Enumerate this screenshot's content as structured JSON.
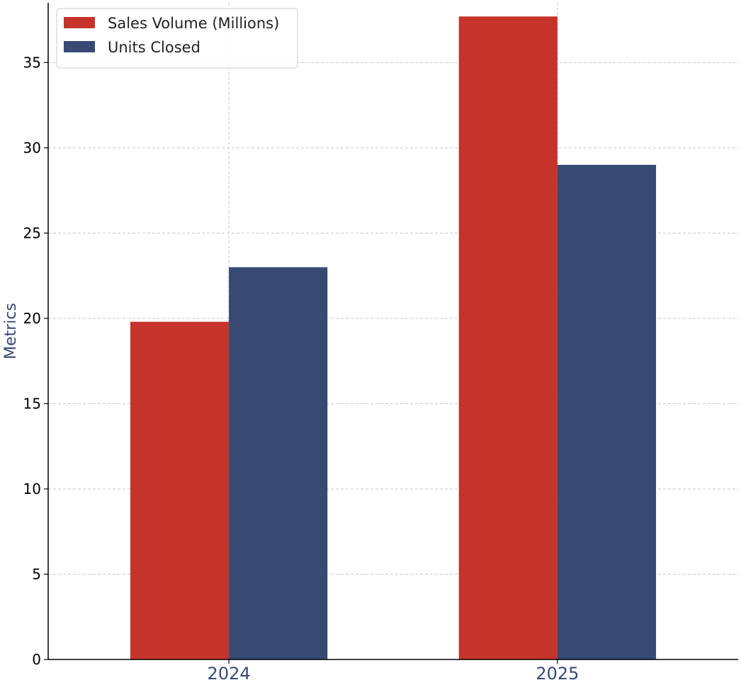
{
  "chart_data": {
    "type": "bar",
    "categories": [
      "2024",
      "2025"
    ],
    "series": [
      {
        "name": "Sales Volume (Millions)",
        "values": [
          19.8,
          37.7
        ],
        "color": "#c6332b"
      },
      {
        "name": "Units Closed",
        "values": [
          23,
          29
        ],
        "color": "#364a74"
      }
    ],
    "title": "",
    "xlabel": "",
    "ylabel": "Metrics",
    "ylim": [
      0,
      38.5
    ],
    "yticks": [
      0,
      5,
      10,
      15,
      20,
      25,
      30,
      35
    ],
    "grid": true,
    "legend_position": "top-left",
    "label_color": "#364a74"
  }
}
